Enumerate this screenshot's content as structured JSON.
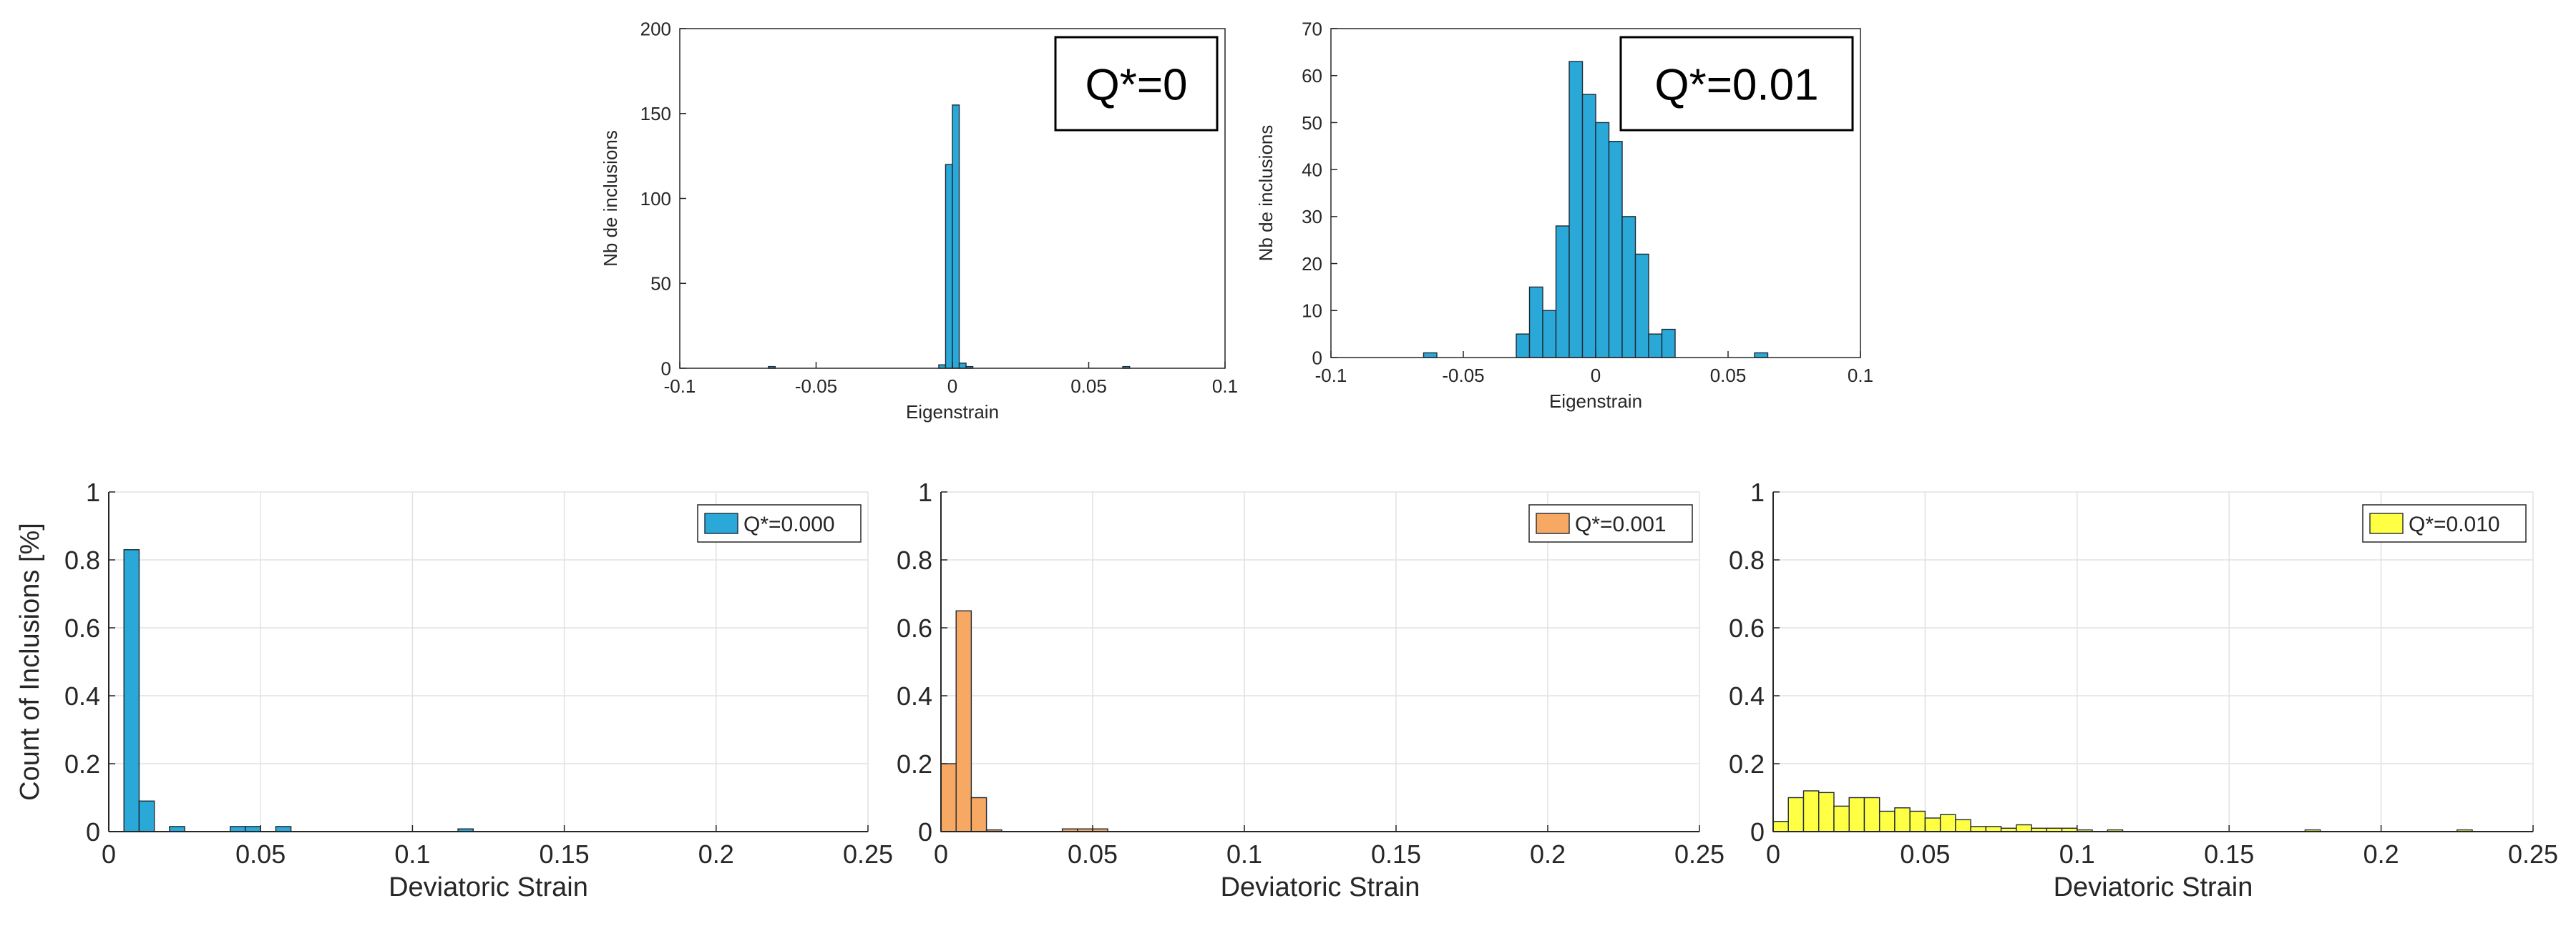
{
  "colors": {
    "blue": "#2aa8d8",
    "orange": "#f7a863",
    "yellow": "#ffff44",
    "edge": "#1e2a35",
    "grid": "#e2e2e2",
    "axis": "#262626"
  },
  "chart_data": [
    {
      "type": "bar",
      "title": "",
      "xlabel": "Eigenstrain",
      "ylabel": "Nb de inclusions",
      "xlim": [
        -0.1,
        0.1
      ],
      "ylim": [
        0,
        200
      ],
      "xticks": [
        "-0.1",
        "-0.05",
        "0",
        "0.05",
        "0.1"
      ],
      "yticks": [
        "0",
        "50",
        "100",
        "150",
        "200"
      ],
      "annotation": "Q*=0",
      "grid": false,
      "bin_width": 0.0025,
      "bin_starts": [
        -0.0675,
        -0.005,
        -0.0025,
        0,
        0.0025,
        0.005,
        0.0625
      ],
      "values": [
        1,
        2,
        120,
        155,
        3,
        1,
        1
      ],
      "color": "blue"
    },
    {
      "type": "bar",
      "title": "",
      "xlabel": "Eigenstrain",
      "ylabel": "Nb de inclusions",
      "xlim": [
        -0.1,
        0.1
      ],
      "ylim": [
        0,
        70
      ],
      "xticks": [
        "-0.1",
        "-0.05",
        "0",
        "0.05",
        "0.1"
      ],
      "yticks": [
        "0",
        "10",
        "20",
        "30",
        "40",
        "50",
        "60",
        "70"
      ],
      "annotation": "Q*=0.01",
      "grid": false,
      "bin_width": 0.005,
      "bin_starts": [
        -0.065,
        -0.03,
        -0.025,
        -0.02,
        -0.015,
        -0.01,
        -0.005,
        0,
        0.005,
        0.01,
        0.015,
        0.02,
        0.025,
        0.06
      ],
      "values": [
        1,
        5,
        15,
        10,
        28,
        63,
        56,
        50,
        46,
        30,
        22,
        5,
        6,
        1
      ],
      "color": "blue"
    },
    {
      "type": "bar",
      "title": "",
      "xlabel": "Deviatoric Strain",
      "ylabel": "Count of Inclusions [%]",
      "xlim": [
        0,
        0.25
      ],
      "ylim": [
        0,
        1
      ],
      "xticks": [
        "0",
        "0.05",
        "0.1",
        "0.15",
        "0.2",
        "0.25"
      ],
      "yticks": [
        "0",
        "0.2",
        "0.4",
        "0.6",
        "0.8",
        "1"
      ],
      "legend": "Q*=0.000",
      "legend_position": "top-right",
      "grid": true,
      "bin_width": 0.005,
      "bin_starts": [
        0.005,
        0.01,
        0.02,
        0.04,
        0.045,
        0.055,
        0.115
      ],
      "values": [
        0.83,
        0.09,
        0.015,
        0.015,
        0.015,
        0.015,
        0.008
      ],
      "color": "blue"
    },
    {
      "type": "bar",
      "title": "",
      "xlabel": "Deviatoric Strain",
      "ylabel": "",
      "xlim": [
        0,
        0.25
      ],
      "ylim": [
        0,
        1
      ],
      "xticks": [
        "0",
        "0.05",
        "0.1",
        "0.15",
        "0.2",
        "0.25"
      ],
      "yticks": [
        "0",
        "0.2",
        "0.4",
        "0.6",
        "0.8",
        "1"
      ],
      "legend": "Q*=0.001",
      "legend_position": "top-right",
      "grid": true,
      "bin_width": 0.005,
      "bin_starts": [
        0,
        0.005,
        0.01,
        0.015,
        0.04,
        0.045,
        0.05
      ],
      "values": [
        0.2,
        0.65,
        0.1,
        0.005,
        0.008,
        0.008,
        0.008
      ],
      "color": "orange"
    },
    {
      "type": "bar",
      "title": "",
      "xlabel": "Deviatoric Strain",
      "ylabel": "",
      "xlim": [
        0,
        0.25
      ],
      "ylim": [
        0,
        1
      ],
      "xticks": [
        "0",
        "0.05",
        "0.1",
        "0.15",
        "0.2",
        "0.25"
      ],
      "yticks": [
        "0",
        "0.2",
        "0.4",
        "0.6",
        "0.8",
        "1"
      ],
      "legend": "Q*=0.010",
      "legend_position": "top-right",
      "grid": true,
      "bin_width": 0.005,
      "bin_starts": [
        0,
        0.005,
        0.01,
        0.015,
        0.02,
        0.025,
        0.03,
        0.035,
        0.04,
        0.045,
        0.05,
        0.055,
        0.06,
        0.065,
        0.07,
        0.075,
        0.08,
        0.085,
        0.09,
        0.095,
        0.1,
        0.11,
        0.175,
        0.225
      ],
      "values": [
        0.03,
        0.1,
        0.12,
        0.115,
        0.075,
        0.1,
        0.1,
        0.06,
        0.07,
        0.06,
        0.04,
        0.05,
        0.035,
        0.015,
        0.015,
        0.01,
        0.02,
        0.01,
        0.01,
        0.01,
        0.005,
        0.005,
        0.005,
        0.005
      ],
      "color": "yellow"
    }
  ]
}
